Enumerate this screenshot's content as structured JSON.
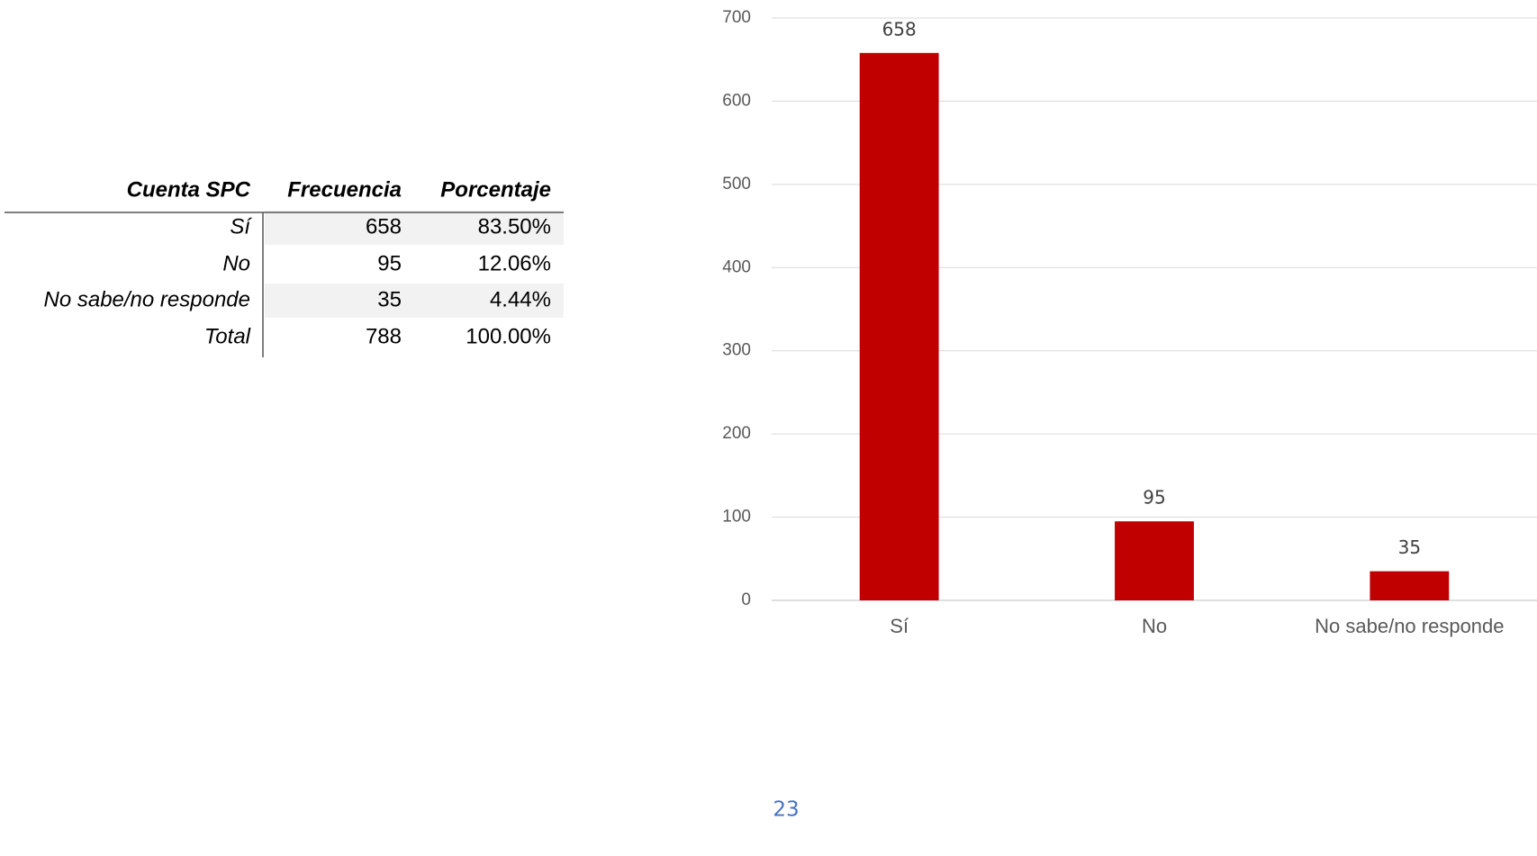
{
  "table": {
    "header": [
      "Cuenta SPC",
      "Frecuencia",
      "Porcentaje"
    ],
    "rows": [
      [
        "Sí",
        "658",
        "83.50%"
      ],
      [
        "No",
        "95",
        "12.06%"
      ],
      [
        "No sabe/no responde",
        "35",
        "4.44%"
      ],
      [
        "Total",
        "788",
        "100.00%"
      ]
    ]
  },
  "chart_data": {
    "type": "bar",
    "categories": [
      "Sí",
      "No",
      "No sabe/no responde"
    ],
    "values": [
      658,
      95,
      35
    ],
    "color": "#c00000",
    "ylim": [
      0,
      700
    ],
    "yticks": [
      0,
      100,
      200,
      300,
      400,
      500,
      600,
      700
    ],
    "grid": true
  },
  "page_number": "23"
}
